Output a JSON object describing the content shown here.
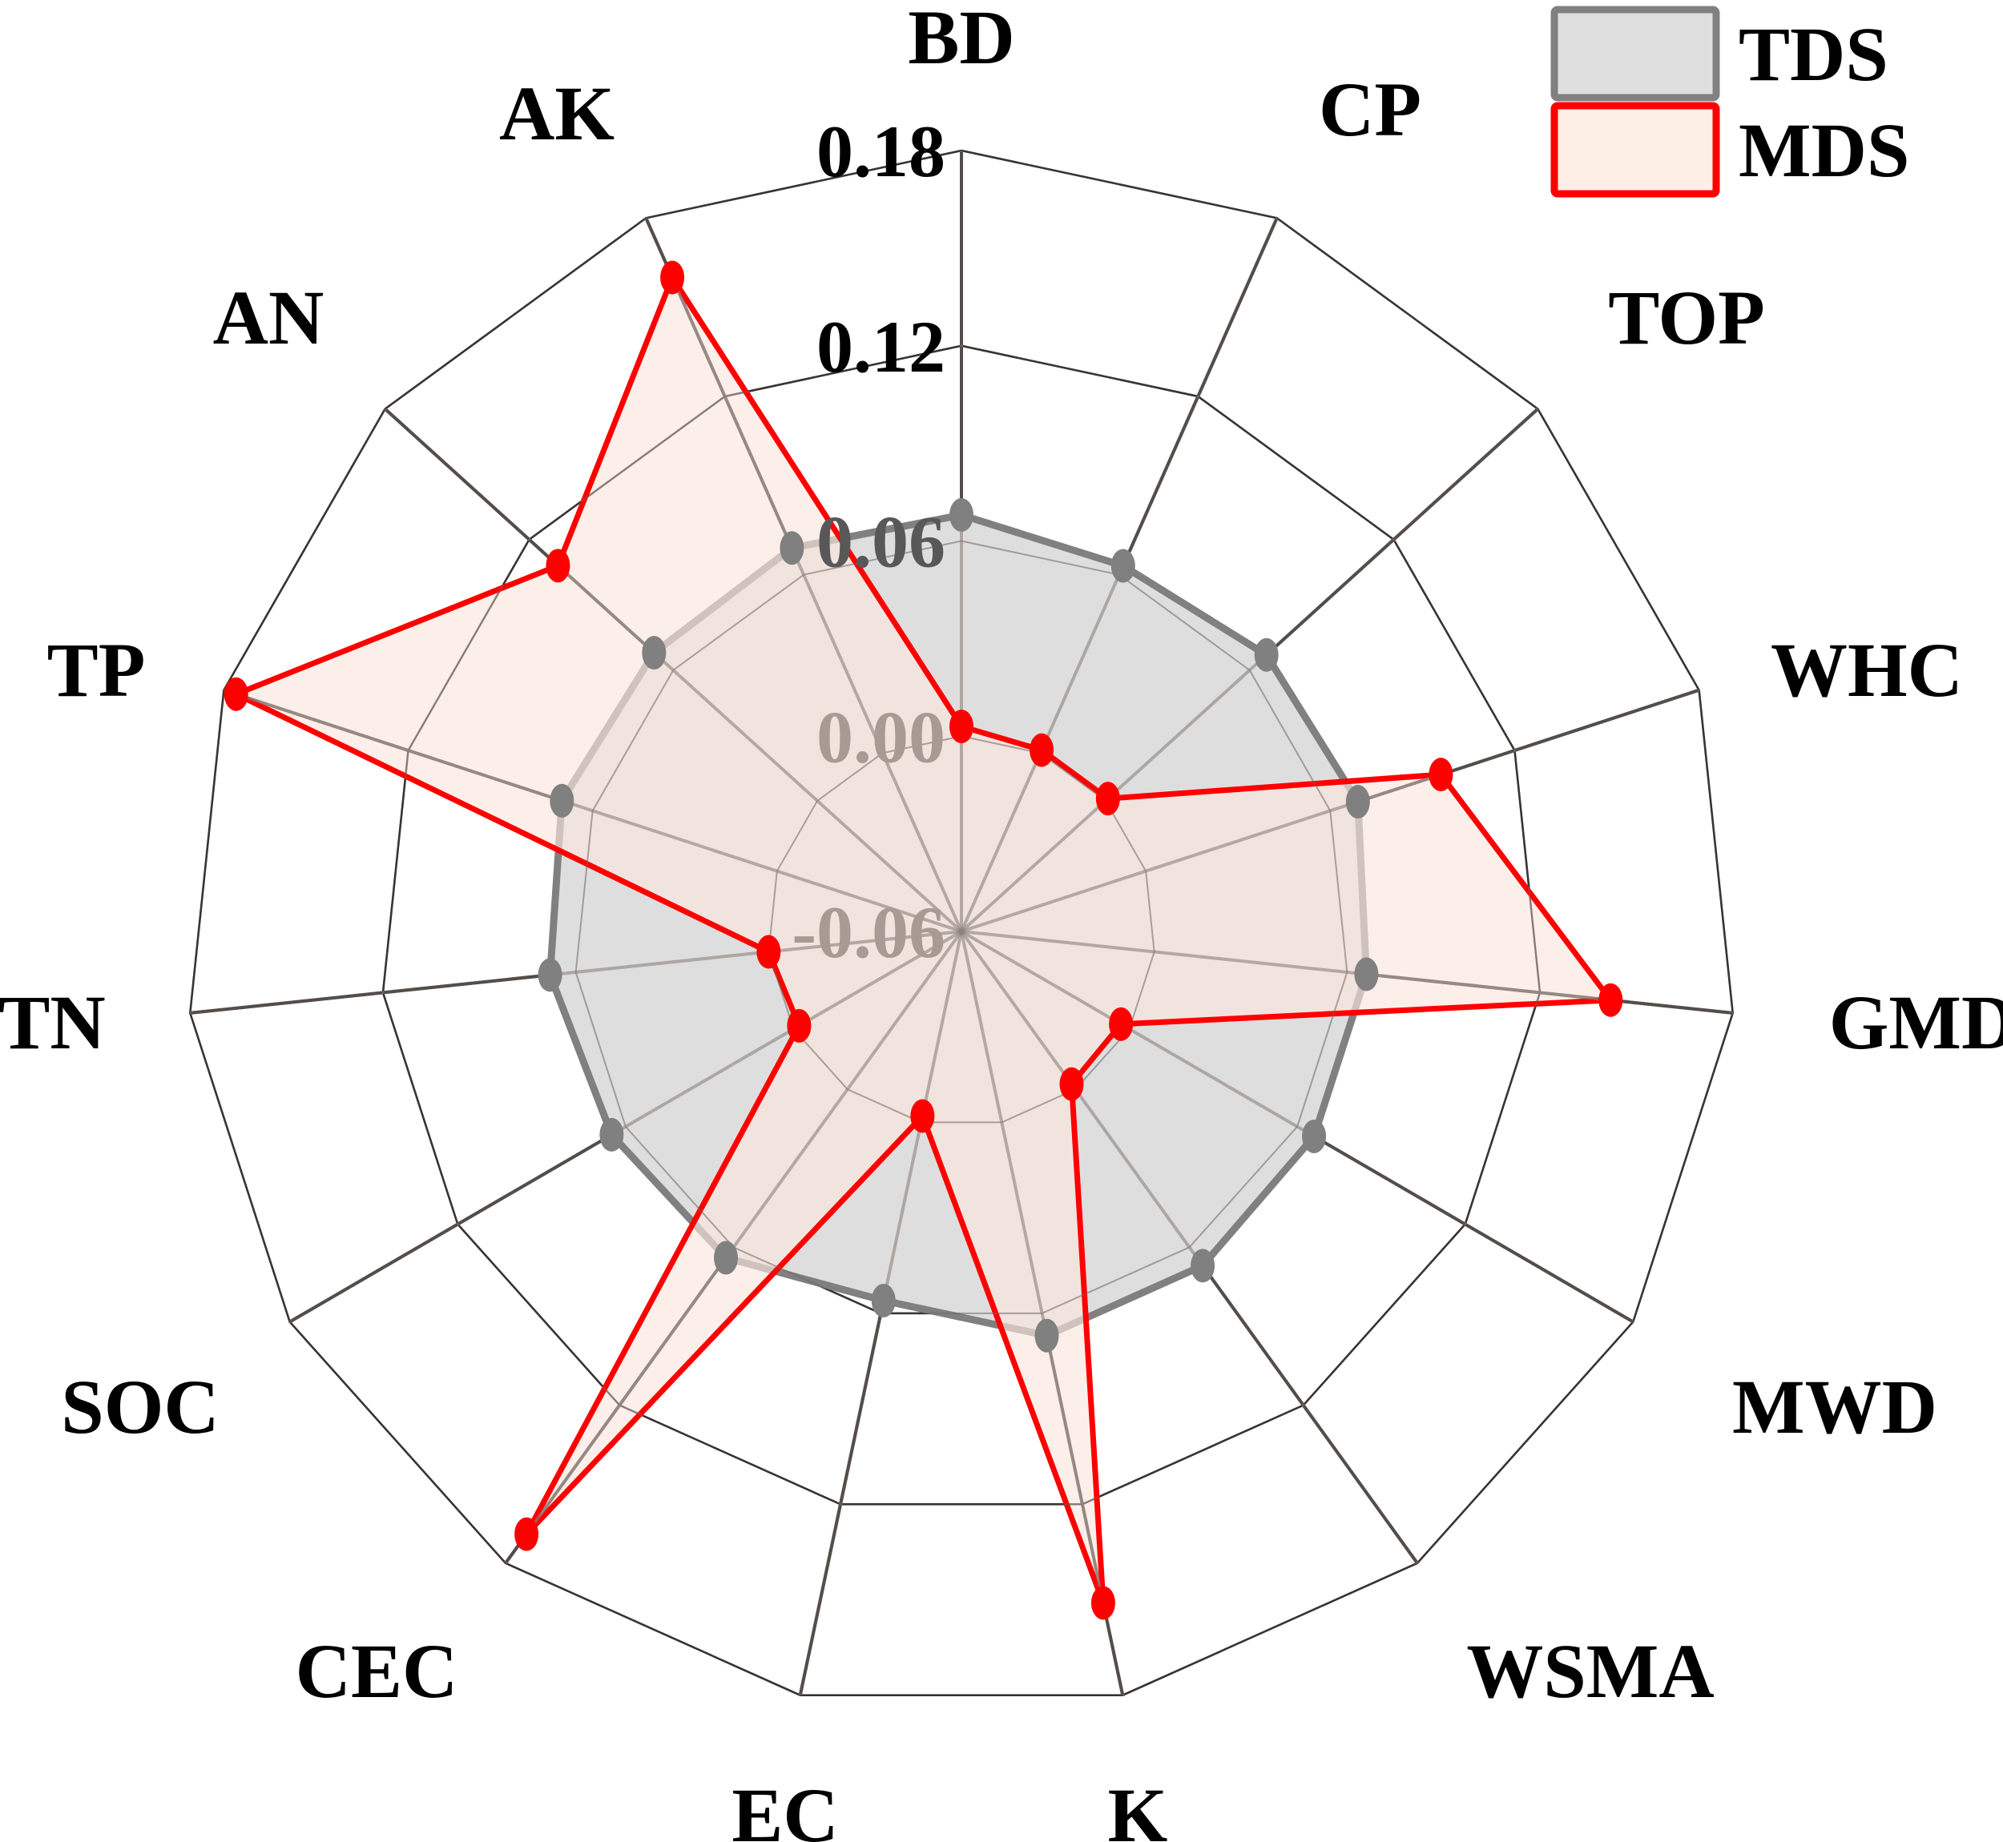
{
  "chart_data": {
    "type": "radar",
    "title": "",
    "axes": [
      "BD",
      "CP",
      "TOP",
      "WHC",
      "GMD",
      "MWD",
      "WSMA",
      "K",
      "EC",
      "CEC",
      "SOC",
      "TN",
      "TP",
      "AN",
      "AK"
    ],
    "rlim": [
      -0.06,
      0.18
    ],
    "rticks": [
      -0.06,
      0.0,
      0.06,
      0.12,
      0.18
    ],
    "rtick_labels": [
      "-0.06",
      "0.00",
      "0.06",
      "0.12",
      "0.18"
    ],
    "grid": true,
    "legend_position": "top-right",
    "series": [
      {
        "name": "TDS",
        "line_color": "#808080",
        "fill_color": "#dedede",
        "marker_color": "#808080",
        "values": [
          0.068,
          0.063,
          0.067,
          0.069,
          0.066,
          0.066,
          0.067,
          0.067,
          0.056,
          0.064,
          0.065,
          0.068,
          0.07,
          0.068,
          0.069
        ]
      },
      {
        "name": "MDS",
        "line_color": "#ff0000",
        "fill_color": "#fbe7dd",
        "marker_color": "#ff0000",
        "values": [
          0.003,
          0.001,
          0.001,
          0.096,
          0.142,
          -0.003,
          -0.002,
          0.151,
          -0.002,
          0.169,
          -0.002,
          0.0,
          0.176,
          0.108,
          0.16
        ]
      }
    ]
  },
  "legend": {
    "items": [
      {
        "label": "TDS",
        "border": "#808080",
        "fill": "#dedede"
      },
      {
        "label": "MDS",
        "border": "#ff0000",
        "fill": "#fdeee6"
      }
    ]
  }
}
